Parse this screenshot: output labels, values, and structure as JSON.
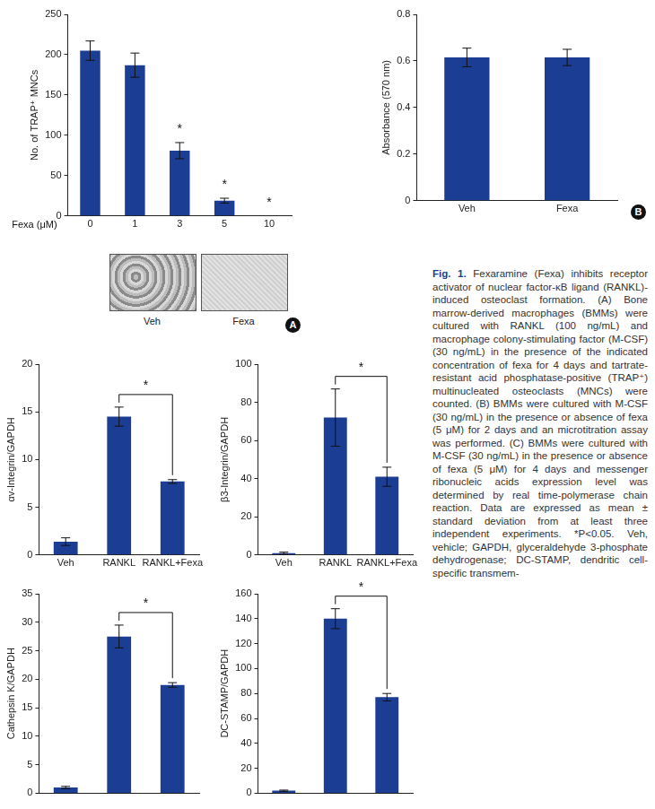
{
  "chart_data": [
    {
      "panel": "A",
      "type": "bar",
      "y_label": "No. of TRAP⁺ MNCs",
      "x_label": "Fexa (μM)",
      "categories": [
        "0",
        "1",
        "3",
        "5",
        "10"
      ],
      "values": [
        205,
        187,
        81,
        19,
        0
      ],
      "errors": [
        12,
        15,
        10,
        3,
        0
      ],
      "ylim": [
        0,
        250
      ],
      "yticks": [
        0,
        50,
        100,
        150,
        200,
        250
      ],
      "grid": false,
      "color": "#1b3d93",
      "annotations": [
        {
          "category": "3",
          "text": "*"
        },
        {
          "category": "5",
          "text": "*"
        },
        {
          "category": "10",
          "text": "*"
        }
      ],
      "images": [
        "Veh",
        "Fexa"
      ]
    },
    {
      "panel": "B",
      "type": "bar",
      "y_label": "Absorbance (570 nm)",
      "categories": [
        "Veh",
        "Fexa"
      ],
      "values": [
        0.615,
        0.615
      ],
      "errors": [
        0.04,
        0.035
      ],
      "ylim": [
        0,
        0.8
      ],
      "yticks": [
        0,
        0.2,
        0.4,
        0.6,
        0.8
      ],
      "grid": false,
      "color": "#1b3d93"
    },
    {
      "type": "bar",
      "y_label": "αv-Integrin/GAPDH",
      "categories": [
        "Veh",
        "RANKL",
        "RANKL+Fexa"
      ],
      "values": [
        1.4,
        14.5,
        7.7
      ],
      "errors": [
        0.4,
        1.0,
        0.2
      ],
      "ylim": [
        0,
        20
      ],
      "yticks": [
        0,
        5,
        10,
        15,
        20
      ],
      "grid": false,
      "color": "#1b3d93",
      "bracket": {
        "between": [
          1,
          2
        ],
        "text": "*"
      }
    },
    {
      "type": "bar",
      "y_label": "β3-Integrin/GAPDH",
      "categories": [
        "Veh",
        "RANKL",
        "RANKL+Fexa"
      ],
      "values": [
        1,
        72,
        41
      ],
      "errors": [
        0.5,
        15,
        5
      ],
      "ylim": [
        0,
        100
      ],
      "yticks": [
        0,
        20,
        40,
        60,
        80,
        100
      ],
      "grid": false,
      "color": "#1b3d93",
      "bracket": {
        "between": [
          1,
          2
        ],
        "text": "*"
      }
    },
    {
      "type": "bar",
      "y_label": "Cathepsin K/GAPDH",
      "tick_labels": "y",
      "categories": [
        null,
        null,
        null
      ],
      "values": [
        1,
        27.5,
        19
      ],
      "errors": [
        0.2,
        2,
        0.4
      ],
      "ylim": [
        0,
        35
      ],
      "yticks": [
        0,
        5,
        10,
        15,
        20,
        25,
        30,
        35
      ],
      "grid": false,
      "color": "#1b3d93",
      "bracket": {
        "between": [
          1,
          2
        ],
        "text": "*"
      }
    },
    {
      "type": "bar",
      "y_label": "DC-STAMP/GAPDH",
      "tick_labels": "y",
      "categories": [
        null,
        null,
        null
      ],
      "values": [
        2,
        140,
        77
      ],
      "errors": [
        0.5,
        8,
        3
      ],
      "ylim": [
        0,
        160
      ],
      "yticks": [
        0,
        20,
        40,
        60,
        80,
        100,
        120,
        140,
        160
      ],
      "grid": false,
      "color": "#1b3d93",
      "bracket": {
        "between": [
          1,
          2
        ],
        "text": "*"
      }
    }
  ],
  "caption": {
    "label": "Fig. 1.",
    "text": "Fexaramine (Fexa) inhibits receptor activator of nuclear factor-κB ligand (RANKL)-induced osteoclast formation. (A) Bone marrow-derived macrophages (BMMs) were cultured with RANKL (100 ng/mL) and macrophage colony-stimulating factor (M-CSF) (30 ng/mL) in the presence of the indicated concentration of fexa for 4 days and tartrate-resistant acid phosphatase-positive (TRAP⁺) multinucleated osteoclasts (MNCs) were counted. (B) BMMs were cultured with M-CSF (30 ng/mL) in the presence or absence of fexa (5 μM) for 2 days and an microtitration assay was performed. (C) BMMs were cultured with M-CSF (30 ng/mL) in the presence or absence of fexa (5 μM) for 4 days and messenger ribonucleic acids expression level was determined by real time-polymerase chain reaction. Data are expressed as mean ± standard deviation from at least three independent experiments. *P<0.05. Veh, vehicle; GAPDH, glyceraldehyde 3-phosphate dehydrogenase; DC-STAMP, dendritic cell-specific transmem-"
  }
}
